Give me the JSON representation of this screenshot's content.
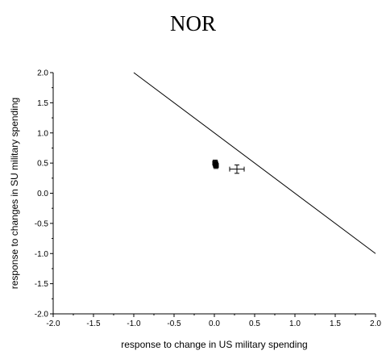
{
  "title": "NOR",
  "chart_data": {
    "type": "scatter",
    "title": "NOR",
    "xlabel": "response to change in US military spending",
    "ylabel": "response to changes in SU military spending",
    "xlim": [
      -2.0,
      2.0
    ],
    "ylim": [
      -2.0,
      2.0
    ],
    "x_ticks": [
      "-2.0",
      "-1.5",
      "-1.0",
      "-0.5",
      "0.0",
      "0.5",
      "1.0",
      "1.5",
      "2.0"
    ],
    "y_ticks": [
      "-2.0",
      "-1.5",
      "-1.0",
      "-0.5",
      "0.0",
      "0.5",
      "1.0",
      "1.5",
      "2.0"
    ],
    "grid": false,
    "reference_line": {
      "x": [
        -1.0,
        2.0
      ],
      "y": [
        2.0,
        -1.0
      ]
    },
    "points": [
      {
        "x": 0.01,
        "y": 0.5,
        "xerr": 0.03,
        "yerr": 0.05,
        "marker": "filled-square"
      },
      {
        "x": 0.02,
        "y": 0.46,
        "xerr": 0.03,
        "yerr": 0.05,
        "marker": "filled-square"
      },
      {
        "x": 0.28,
        "y": 0.4,
        "xerr": 0.09,
        "yerr": 0.07,
        "marker": "plus"
      }
    ]
  }
}
